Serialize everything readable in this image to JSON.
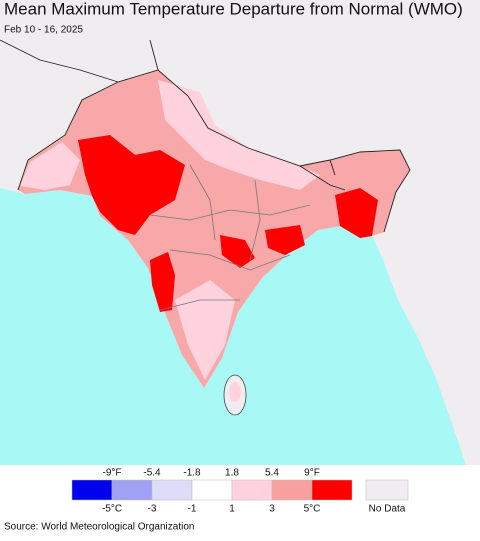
{
  "title": "Mean Maximum Temperature Departure from Normal (WMO)",
  "subtitle": "Feb 10 - 16, 2025",
  "legend": {
    "fahrenheit_labels": [
      "-9°F",
      "-5.4",
      "-1.8",
      "1.8",
      "5.4",
      "9°F"
    ],
    "celsius_labels": [
      "-5°C",
      "-3",
      "-1",
      "1",
      "3",
      "5°C"
    ],
    "colors": [
      "#0000ee",
      "#a0a0f5",
      "#dedcf8",
      "#ffffff",
      "#ffd2de",
      "#f8a0a0",
      "#ff0000"
    ],
    "no_data_label": "No Data",
    "no_data_color": "#f0edf0"
  },
  "source": "Source: World Meteorological Organization"
}
